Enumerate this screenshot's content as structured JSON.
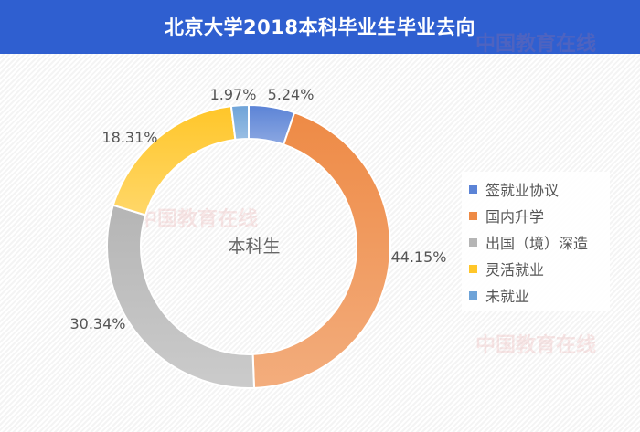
{
  "title": "北京大学2018本科毕业生毕业去向",
  "watermark": "中国教育在线 www.eol.cn",
  "chart_data": {
    "type": "pie",
    "variant": "donut",
    "center_label": "本科生",
    "categories": [
      "签就业协议",
      "国内升学",
      "出国（境）深造",
      "灵活就业",
      "未就业"
    ],
    "values": [
      5.24,
      44.15,
      30.34,
      18.31,
      1.97
    ],
    "data_labels": [
      "5.24%",
      "44.15%",
      "30.34%",
      "18.31%",
      "1.97%"
    ],
    "colors": [
      "#5b83d6",
      "#ee8a45",
      "#b5b5b5",
      "#ffc629",
      "#6ea3d8"
    ],
    "legend_position": "right",
    "start": "top, clockwise"
  }
}
